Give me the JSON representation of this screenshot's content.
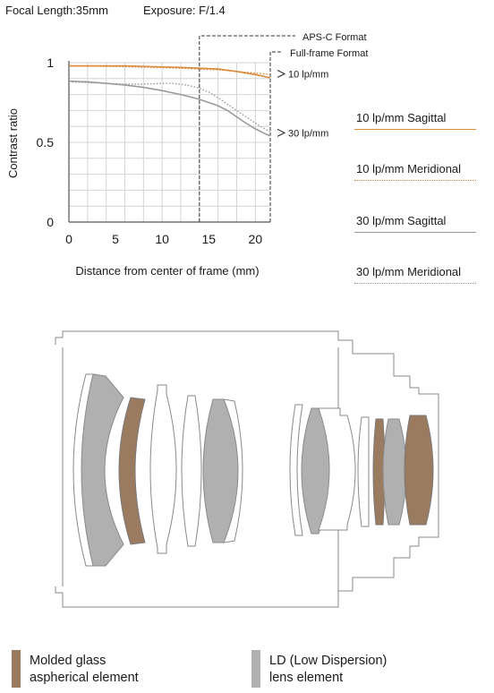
{
  "header": {
    "focal_length": "Focal Length:35mm",
    "exposure": "Exposure: F/1.4"
  },
  "colors": {
    "sagittal_10": "#d98a3a",
    "meridional_10": "#d98a3a",
    "sagittal_30": "#9a9a9a",
    "meridional_30": "#9a9a9a",
    "molded_glass": "#9b7b60",
    "ld_glass": "#b0b0b0"
  },
  "chart_data": {
    "type": "line",
    "xlabel": "Distance from center of frame (mm)",
    "ylabel": "Contrast ratio",
    "xlim": [
      0,
      21.6
    ],
    "ylim": [
      0,
      1
    ],
    "x_ticks": [
      "0",
      "5",
      "10",
      "15",
      "20"
    ],
    "y_ticks": [
      "0",
      "0.5",
      "1"
    ],
    "grid": true,
    "series": [
      {
        "name": "10 lp/mm Sagittal",
        "style": "solid",
        "x": [
          0,
          3,
          6,
          9,
          12,
          14,
          16,
          18,
          20,
          21.6
        ],
        "y": [
          0.98,
          0.98,
          0.98,
          0.975,
          0.97,
          0.965,
          0.96,
          0.945,
          0.925,
          0.905
        ]
      },
      {
        "name": "10 lp/mm Meridional",
        "style": "dotted",
        "x": [
          0,
          3,
          6,
          9,
          12,
          14,
          16,
          18,
          20,
          21.6
        ],
        "y": [
          0.98,
          0.978,
          0.975,
          0.97,
          0.965,
          0.96,
          0.955,
          0.945,
          0.935,
          0.925
        ]
      },
      {
        "name": "30 lp/mm Sagittal",
        "style": "solid",
        "x": [
          0,
          2,
          4,
          6,
          8,
          10,
          12,
          14,
          16,
          17,
          18,
          19,
          20,
          21,
          21.6
        ],
        "y": [
          0.885,
          0.88,
          0.87,
          0.86,
          0.845,
          0.825,
          0.8,
          0.77,
          0.73,
          0.7,
          0.66,
          0.62,
          0.585,
          0.555,
          0.54
        ]
      },
      {
        "name": "30 lp/mm Meridional",
        "style": "dotted",
        "x": [
          0,
          2,
          4,
          6,
          8,
          10,
          11,
          12,
          13,
          14,
          15,
          16,
          17,
          18,
          19,
          20,
          21,
          21.6
        ],
        "y": [
          0.88,
          0.875,
          0.87,
          0.865,
          0.865,
          0.87,
          0.87,
          0.865,
          0.855,
          0.84,
          0.815,
          0.78,
          0.74,
          0.7,
          0.66,
          0.62,
          0.585,
          0.565
        ]
      }
    ],
    "annotations": [
      {
        "text": "APS-C Format",
        "x": 14
      },
      {
        "text": "Full-frame Format",
        "x": 21.6
      },
      {
        "text": "10 lp/mm",
        "y": 0.93
      },
      {
        "text": "30 lp/mm",
        "y": 0.56
      }
    ]
  },
  "legend": {
    "items": [
      {
        "label": "10 lp/mm Sagittal",
        "style": "solid",
        "color": "#d98a3a"
      },
      {
        "label": "10 lp/mm Meridional",
        "style": "dotted",
        "color": "#d98a3a"
      },
      {
        "label": "30 lp/mm Sagittal",
        "style": "solid",
        "color": "#9a9a9a"
      },
      {
        "label": "30 lp/mm Meridional",
        "style": "dotted",
        "color": "#9a9a9a"
      }
    ]
  },
  "key": {
    "molded_line1": "Molded glass",
    "molded_line2": "aspherical element",
    "ld_line1": "LD (Low Dispersion)",
    "ld_line2": "lens element"
  }
}
